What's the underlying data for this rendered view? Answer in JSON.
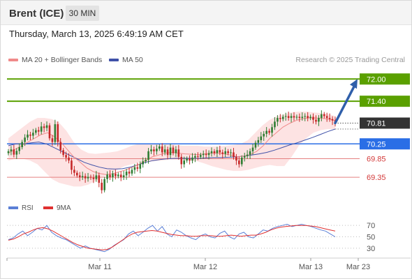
{
  "instrument": "Brent (ICE)",
  "timeframe": "30 MIN",
  "datetime": "Thursday, March 13, 2025 6:49:19 AM CET",
  "legend": {
    "ma20_bb": "MA 20 + Bollinger Bands",
    "ma50": "MA 50",
    "credit": "Research © 2025 Trading Central"
  },
  "rsi_legend": {
    "rsi": "RSI",
    "ma9": "9MA"
  },
  "colors": {
    "bull_candle": "#2e7d32",
    "bear_candle": "#c62828",
    "bollinger_fill": "#fde3e3",
    "ma20": "#f08a8a",
    "ma50": "#3f51a8",
    "target_green": "#5aa000",
    "pivot_blue": "#2a6ee6",
    "support_red": "#e58080",
    "current_price_bg": "#333333",
    "arrow": "#2f5faa",
    "rsi_line": "#5b7fd6",
    "rsi_ma": "#e03030"
  },
  "chart_data": [
    {
      "type": "candlestick",
      "x_axis": {
        "ticks": [
          "Mar 11",
          "Mar 12",
          "Mar 13",
          "Mar 23"
        ]
      },
      "ylim": [
        68.9,
        72.4
      ],
      "levels": [
        {
          "value": 72.0,
          "label": "72.00",
          "kind": "target"
        },
        {
          "value": 71.4,
          "label": "71.40",
          "kind": "target"
        },
        {
          "value": 70.81,
          "label": "70.81",
          "kind": "last"
        },
        {
          "value": 70.25,
          "label": "70.25",
          "kind": "pivot"
        },
        {
          "value": 69.85,
          "label": "69.85",
          "kind": "support"
        },
        {
          "value": 69.35,
          "label": "69.35",
          "kind": "support"
        }
      ],
      "candles_close": [
        70.05,
        70.1,
        69.96,
        70.06,
        70.16,
        70.3,
        70.42,
        70.5,
        70.47,
        70.55,
        70.62,
        70.58,
        70.72,
        70.68,
        70.75,
        70.4,
        70.3,
        70.78,
        70.3,
        70.08,
        69.95,
        69.88,
        69.8,
        69.55,
        69.47,
        69.4,
        69.35,
        69.38,
        69.32,
        69.36,
        69.34,
        69.3,
        69.4,
        69.2,
        69.0,
        69.3,
        69.42,
        69.35,
        69.45,
        69.38,
        69.42,
        69.35,
        69.4,
        69.5,
        69.45,
        69.55,
        69.62,
        69.58,
        69.7,
        69.78,
        69.82,
        70.05,
        70.1,
        70.05,
        70.12,
        70.18,
        70.02,
        70.1,
        69.95,
        70.15,
        70.0,
        70.1,
        69.9,
        69.7,
        69.8,
        69.85,
        69.8,
        69.88,
        69.92,
        69.9,
        69.95,
        69.98,
        69.95,
        70.0,
        70.05,
        70.0,
        70.08,
        70.02,
        69.98,
        70.05,
        70.0,
        70.02,
        69.9,
        69.8,
        69.7,
        69.88,
        69.92,
        69.96,
        70.05,
        70.15,
        70.28,
        70.35,
        70.45,
        70.52,
        70.6,
        70.55,
        70.7,
        70.85,
        70.95,
        70.92,
        70.98,
        71.0,
        70.95,
        71.0,
        70.96,
        70.98,
        70.95,
        70.98,
        71.0,
        70.95,
        70.98,
        70.9,
        70.85,
        70.95,
        71.05,
        71.0,
        70.95,
        70.92,
        70.88,
        70.81
      ],
      "ma20": [
        70.0,
        70.1,
        70.2,
        70.3,
        70.4,
        70.5,
        70.55,
        70.45,
        70.3,
        70.1,
        69.9,
        69.75,
        69.6,
        69.5,
        69.45,
        69.42,
        69.45,
        69.5,
        69.55,
        69.62,
        69.7,
        69.8,
        69.9,
        69.95,
        70.0,
        70.02,
        70.0,
        69.98,
        69.97,
        69.96,
        69.98,
        70.0,
        70.0,
        69.98,
        69.95,
        69.9,
        69.92,
        69.96,
        70.05,
        70.2,
        70.4,
        70.55,
        70.7,
        70.8,
        70.88,
        70.93,
        70.95,
        70.95,
        70.94,
        70.92,
        70.88
      ],
      "ma50": [
        70.2,
        70.25,
        70.25,
        70.28,
        70.3,
        70.25,
        70.15,
        70.05,
        69.95,
        69.85,
        69.75,
        69.68,
        69.62,
        69.58,
        69.57,
        69.58,
        69.62,
        69.68,
        69.75,
        69.8,
        69.83,
        69.85,
        69.86,
        69.86,
        69.86,
        69.86,
        69.87,
        69.88,
        69.88,
        69.89,
        69.9,
        69.92,
        69.95,
        69.98,
        70.02,
        70.08,
        70.15,
        70.22,
        70.28,
        70.35,
        70.42,
        70.5,
        70.58,
        70.65
      ],
      "bb_upper": [
        70.4,
        70.55,
        70.7,
        70.85,
        70.95,
        70.95,
        70.92,
        70.82,
        70.6,
        70.3,
        70.1,
        70.0,
        69.98,
        70.0,
        70.02,
        70.05,
        70.12,
        70.2,
        70.25,
        70.25,
        70.25,
        70.25,
        70.25,
        70.22,
        70.2,
        70.2,
        70.2,
        70.18,
        70.18,
        70.18,
        70.2,
        70.22,
        70.25,
        70.35,
        70.55,
        70.75,
        70.9,
        71.0,
        71.05,
        71.1,
        71.12,
        71.12,
        71.1,
        71.08,
        71.05,
        71.0
      ],
      "bb_lower": [
        69.8,
        69.85,
        69.85,
        69.8,
        69.7,
        69.5,
        69.3,
        69.2,
        69.15,
        69.1,
        69.1,
        69.15,
        69.25,
        69.35,
        69.45,
        69.55,
        69.65,
        69.7,
        69.75,
        69.75,
        69.78,
        69.8,
        69.82,
        69.82,
        69.82,
        69.8,
        69.78,
        69.72,
        69.65,
        69.6,
        69.55,
        69.52,
        69.52,
        69.55,
        69.6,
        69.65,
        69.68,
        69.65,
        69.65,
        69.9,
        70.2,
        70.4,
        70.55,
        70.62,
        70.65,
        70.65
      ],
      "projection": {
        "from": 70.81,
        "to": 72.0
      }
    },
    {
      "type": "line",
      "name_rsi": "RSI",
      "name_ma": "9MA",
      "ylim": [
        20,
        80
      ],
      "levels": [
        70,
        50,
        30
      ],
      "rsi": [
        45,
        48,
        55,
        60,
        52,
        58,
        65,
        62,
        70,
        58,
        52,
        48,
        45,
        40,
        35,
        30,
        34,
        30,
        28,
        26,
        24,
        28,
        35,
        40,
        45,
        55,
        60,
        52,
        58,
        65,
        70,
        60,
        68,
        55,
        50,
        62,
        58,
        52,
        48,
        45,
        52,
        55,
        50,
        48,
        56,
        60,
        50,
        46,
        55,
        58,
        50,
        48,
        55,
        62,
        60,
        65,
        68,
        70,
        72,
        68,
        70,
        72,
        70,
        68,
        65,
        62,
        60,
        55,
        50
      ],
      "rsi_ma": [
        44,
        46,
        50,
        55,
        58,
        62,
        65,
        66,
        64,
        60,
        55,
        50,
        45,
        40,
        36,
        33,
        30,
        29,
        28,
        27,
        28,
        32,
        38,
        44,
        50,
        55,
        58,
        59,
        60,
        61,
        60,
        58,
        56,
        54,
        53,
        52,
        52,
        51,
        51,
        52,
        52,
        52,
        51,
        51,
        52,
        53,
        52,
        51,
        52,
        53,
        53,
        55,
        58,
        62,
        65,
        67,
        68,
        69,
        70,
        70,
        70,
        69,
        68,
        66,
        64,
        62,
        60
      ]
    }
  ]
}
